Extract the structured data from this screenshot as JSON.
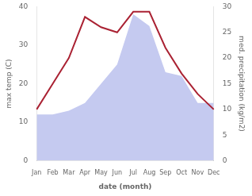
{
  "chart_data": {
    "type": "line",
    "categories": [
      "Jan",
      "Feb",
      "Mar",
      "Apr",
      "May",
      "Jun",
      "Jul",
      "Aug",
      "Sep",
      "Oct",
      "Nov",
      "Dec"
    ],
    "series": [
      {
        "type": "area",
        "color": "#c5caf0",
        "values": [
          12,
          12,
          13,
          15,
          20,
          25,
          38,
          35,
          23,
          22,
          15,
          15
        ]
      },
      {
        "type": "line",
        "color": "#aa2233",
        "axis": "y2",
        "values": [
          10,
          15,
          20,
          28,
          26,
          25,
          29,
          29,
          22,
          17,
          13,
          10
        ]
      }
    ],
    "xlabel": "date (month)",
    "ylabel": "max temp (C)",
    "y2label": "med. precipitation (kg/m2)",
    "ylim": [
      0,
      40
    ],
    "yticks": [
      0,
      10,
      20,
      30,
      40
    ],
    "y2lim": [
      0,
      30
    ],
    "y2ticks": [
      0,
      5,
      10,
      15,
      20,
      25,
      30
    ],
    "grid": false
  }
}
